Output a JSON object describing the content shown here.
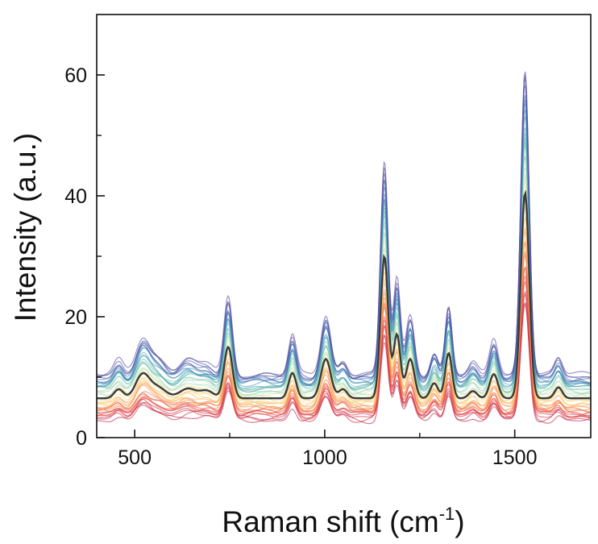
{
  "chart_data": {
    "type": "line",
    "title": "",
    "xlabel": "Raman shift (cm",
    "xlabel_superscript": "-1",
    "xlabel_close": ")",
    "ylabel": "Intensity (a.u.)",
    "xlim": [
      400,
      1700
    ],
    "ylim": [
      0,
      70
    ],
    "x_ticks": [
      500,
      1000,
      1500
    ],
    "y_ticks": [
      0,
      20,
      40,
      60
    ],
    "x_minor_ticks": [
      750,
      1250
    ],
    "y_minor_ticks": [
      10,
      30,
      50
    ],
    "grid": false,
    "legend": "none",
    "series_count": 40,
    "mean_color": "#3a3a3a",
    "gradient_colors": [
      "#c0264d",
      "#e8443a",
      "#f89a52",
      "#fde28a",
      "#cfe8c3",
      "#5fbdb0",
      "#3f7fbd",
      "#5a4a9e"
    ],
    "mean_spectrum": {
      "baseline": 6.5,
      "peaks": [
        {
          "center": 458,
          "height": 1.5,
          "width": 12
        },
        {
          "center": 520,
          "height": 3.8,
          "width": 18
        },
        {
          "center": 560,
          "height": 1.8,
          "width": 22
        },
        {
          "center": 640,
          "height": 1.6,
          "width": 22
        },
        {
          "center": 690,
          "height": 1.2,
          "width": 18
        },
        {
          "center": 746,
          "height": 8.5,
          "width": 11
        },
        {
          "center": 915,
          "height": 4.2,
          "width": 10
        },
        {
          "center": 1003,
          "height": 6.5,
          "width": 13
        },
        {
          "center": 1048,
          "height": 1.5,
          "width": 11
        },
        {
          "center": 1157,
          "height": 23.5,
          "width": 10
        },
        {
          "center": 1190,
          "height": 10.5,
          "width": 9
        },
        {
          "center": 1225,
          "height": 6.5,
          "width": 11
        },
        {
          "center": 1288,
          "height": 2.5,
          "width": 10
        },
        {
          "center": 1326,
          "height": 7.5,
          "width": 9
        },
        {
          "center": 1390,
          "height": 1.2,
          "width": 11
        },
        {
          "center": 1445,
          "height": 4.0,
          "width": 11
        },
        {
          "center": 1527,
          "height": 34.0,
          "width": 11
        },
        {
          "center": 1615,
          "height": 1.8,
          "width": 10
        }
      ]
    }
  }
}
